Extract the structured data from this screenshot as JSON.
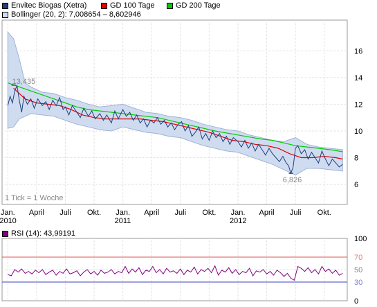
{
  "legend": {
    "price": "Envitec Biogas (Xetra)",
    "gd100": "GD 100 Tage",
    "gd200": "GD 200 Tage",
    "bollinger": "Bollinger (20, 2): 7,008654 – 8,602946",
    "rsi": "RSI (14): 43,99191"
  },
  "colors": {
    "price": "#1f3f7f",
    "gd100": "#e60000",
    "gd200": "#00cc00",
    "bollinger_fill": "#cfdcf0",
    "bollinger_line": "#9fb3d6",
    "rsi_line": "#800080",
    "rsi_upper": "#e05050",
    "rsi_lower": "#4040c0"
  },
  "chart_data": [
    {
      "type": "line",
      "title": "",
      "x_ticks": [
        {
          "month": "Jan.",
          "year": "2010"
        },
        {
          "month": "April",
          "year": ""
        },
        {
          "month": "Juli",
          "year": ""
        },
        {
          "month": "Okt.",
          "year": ""
        },
        {
          "month": "Jan.",
          "year": "2011"
        },
        {
          "month": "April",
          "year": ""
        },
        {
          "month": "Juli",
          "year": ""
        },
        {
          "month": "Okt.",
          "year": ""
        },
        {
          "month": "Jan.",
          "year": "2012"
        },
        {
          "month": "April",
          "year": ""
        },
        {
          "month": "Juli",
          "year": ""
        },
        {
          "month": "Okt.",
          "year": ""
        }
      ],
      "y_ticks": [
        "6",
        "8",
        "10",
        "12",
        "14",
        "16"
      ],
      "ylim": [
        4.5,
        18.3
      ],
      "xlim": [
        2009.95,
        2012.95
      ],
      "grid": true,
      "annotations": [
        {
          "label": "13,435",
          "x": 2010.05,
          "y": 13.43
        },
        {
          "label": "6,826",
          "x": 2012.46,
          "y": 6.83
        }
      ],
      "note": "1 Tick = 1 Woche",
      "series": [
        {
          "name": "Envitec Biogas (Xetra)",
          "x": [
            2010.0,
            2010.02,
            2010.04,
            2010.06,
            2010.08,
            2010.1,
            2010.12,
            2010.14,
            2010.17,
            2010.2,
            2010.23,
            2010.26,
            2010.3,
            2010.33,
            2010.36,
            2010.39,
            2010.42,
            2010.45,
            2010.48,
            2010.5,
            2010.53,
            2010.56,
            2010.6,
            2010.63,
            2010.66,
            2010.7,
            2010.73,
            2010.76,
            2010.8,
            2010.83,
            2010.86,
            2010.9,
            2010.93,
            2010.96,
            2011.0,
            2011.03,
            2011.06,
            2011.09,
            2011.12,
            2011.15,
            2011.18,
            2011.21,
            2011.24,
            2011.27,
            2011.3,
            2011.33,
            2011.36,
            2011.39,
            2011.42,
            2011.45,
            2011.48,
            2011.51,
            2011.54,
            2011.57,
            2011.6,
            2011.63,
            2011.66,
            2011.69,
            2011.72,
            2011.75,
            2011.78,
            2011.81,
            2011.84,
            2011.87,
            2011.9,
            2011.93,
            2011.96,
            2012.0,
            2012.03,
            2012.06,
            2012.09,
            2012.12,
            2012.15,
            2012.18,
            2012.21,
            2012.24,
            2012.27,
            2012.3,
            2012.33,
            2012.36,
            2012.39,
            2012.42,
            2012.44,
            2012.46,
            2012.48,
            2012.5,
            2012.52,
            2012.55,
            2012.58,
            2012.61,
            2012.64,
            2012.67,
            2012.7,
            2012.73,
            2012.76,
            2012.79,
            2012.82,
            2012.85,
            2012.88,
            2012.91
          ],
          "y": [
            11.9,
            12.6,
            12.1,
            13.0,
            13.4,
            12.3,
            11.4,
            12.6,
            12.0,
            12.4,
            11.7,
            12.4,
            11.9,
            12.2,
            11.6,
            12.3,
            11.9,
            12.5,
            11.6,
            11.8,
            11.2,
            11.9,
            11.4,
            11.0,
            11.7,
            11.1,
            11.5,
            10.9,
            11.3,
            10.8,
            11.2,
            10.6,
            11.5,
            10.9,
            11.6,
            11.1,
            11.4,
            10.8,
            11.2,
            10.6,
            10.9,
            10.3,
            10.8,
            10.6,
            11.0,
            10.5,
            10.8,
            10.3,
            10.6,
            10.1,
            10.5,
            10.7,
            10.0,
            10.4,
            9.6,
            9.9,
            10.3,
            9.4,
            9.8,
            9.3,
            10.0,
            9.5,
            9.8,
            9.2,
            9.6,
            9.0,
            9.5,
            9.2,
            8.8,
            9.3,
            8.7,
            9.1,
            8.5,
            9.0,
            8.6,
            8.2,
            8.7,
            8.3,
            8.0,
            7.7,
            8.1,
            7.6,
            7.4,
            6.83,
            7.3,
            8.7,
            8.9,
            8.3,
            8.6,
            7.9,
            8.4,
            8.0,
            7.6,
            8.5,
            7.9,
            7.4,
            7.9,
            7.6,
            7.3,
            7.5
          ]
        },
        {
          "name": "GD 100 Tage",
          "x": [
            2010.05,
            2010.15,
            2010.25,
            2010.35,
            2010.45,
            2010.55,
            2010.65,
            2010.75,
            2010.85,
            2010.95,
            2011.05,
            2011.15,
            2011.25,
            2011.35,
            2011.45,
            2011.55,
            2011.65,
            2011.75,
            2011.85,
            2011.95,
            2012.05,
            2012.15,
            2012.25,
            2012.35,
            2012.45,
            2012.55,
            2012.65,
            2012.75,
            2012.85,
            2012.91
          ],
          "y": [
            13.2,
            12.4,
            12.1,
            12.0,
            11.9,
            11.6,
            11.2,
            11.0,
            10.9,
            10.9,
            10.9,
            10.9,
            10.8,
            10.7,
            10.5,
            10.3,
            10.1,
            9.9,
            9.6,
            9.3,
            9.2,
            9.0,
            8.9,
            8.7,
            8.3,
            8.0,
            8.0,
            8.1,
            8.0,
            7.9
          ]
        },
        {
          "name": "GD 200 Tage",
          "x": [
            2010.0,
            2010.1,
            2010.2,
            2010.3,
            2010.4,
            2010.5,
            2010.6,
            2010.7,
            2010.8,
            2010.9,
            2011.0,
            2011.1,
            2011.2,
            2011.3,
            2011.4,
            2011.5,
            2011.6,
            2011.7,
            2011.8,
            2011.9,
            2012.0,
            2012.1,
            2012.2,
            2012.3,
            2012.4,
            2012.5,
            2012.6,
            2012.7,
            2012.8,
            2012.91
          ],
          "y": [
            13.6,
            13.3,
            13.0,
            12.7,
            12.4,
            12.1,
            11.8,
            11.6,
            11.5,
            11.4,
            11.3,
            11.2,
            11.1,
            11.0,
            10.8,
            10.6,
            10.4,
            10.2,
            10.0,
            9.85,
            9.7,
            9.55,
            9.4,
            9.3,
            9.1,
            8.9,
            8.8,
            8.7,
            8.6,
            8.45
          ]
        },
        {
          "name": "Bollinger (20, 2)",
          "x": [
            2010.0,
            2010.05,
            2010.1,
            2010.15,
            2010.2,
            2010.3,
            2010.4,
            2010.5,
            2010.6,
            2010.7,
            2010.8,
            2010.9,
            2011.0,
            2011.1,
            2011.2,
            2011.3,
            2011.4,
            2011.5,
            2011.6,
            2011.7,
            2011.8,
            2011.9,
            2012.0,
            2012.1,
            2012.2,
            2012.3,
            2012.4,
            2012.5,
            2012.6,
            2012.7,
            2012.8,
            2012.91
          ],
          "upper": [
            17.4,
            16.9,
            15.4,
            13.6,
            13.3,
            12.9,
            12.8,
            12.5,
            12.3,
            12.0,
            11.8,
            11.9,
            12.0,
            11.7,
            11.4,
            11.3,
            11.1,
            11.0,
            10.8,
            10.5,
            10.3,
            10.1,
            10.0,
            9.7,
            9.5,
            9.3,
            9.2,
            9.5,
            9.0,
            8.8,
            8.7,
            8.6
          ],
          "lower": [
            10.2,
            10.3,
            10.9,
            11.1,
            11.3,
            11.2,
            11.1,
            10.8,
            10.5,
            10.3,
            10.1,
            10.0,
            10.3,
            10.1,
            9.9,
            9.8,
            9.6,
            9.5,
            9.2,
            8.9,
            8.7,
            8.5,
            8.4,
            8.1,
            7.8,
            7.5,
            7.1,
            6.7,
            7.2,
            7.2,
            7.1,
            7.0
          ]
        }
      ]
    },
    {
      "type": "line",
      "title": "",
      "y_ticks": [
        "0",
        "30",
        "50",
        "70",
        "100"
      ],
      "ylim": [
        0,
        100
      ],
      "reference_lines": [
        30,
        70
      ],
      "series": [
        {
          "name": "RSI (14)",
          "x": [
            2010.0,
            2010.03,
            2010.06,
            2010.09,
            2010.12,
            2010.15,
            2010.18,
            2010.21,
            2010.24,
            2010.27,
            2010.3,
            2010.33,
            2010.36,
            2010.39,
            2010.42,
            2010.45,
            2010.48,
            2010.51,
            2010.54,
            2010.57,
            2010.6,
            2010.63,
            2010.66,
            2010.69,
            2010.72,
            2010.75,
            2010.78,
            2010.81,
            2010.84,
            2010.87,
            2010.9,
            2010.93,
            2010.96,
            2010.99,
            2011.02,
            2011.05,
            2011.08,
            2011.11,
            2011.14,
            2011.17,
            2011.2,
            2011.23,
            2011.26,
            2011.29,
            2011.32,
            2011.35,
            2011.38,
            2011.41,
            2011.44,
            2011.47,
            2011.5,
            2011.53,
            2011.56,
            2011.59,
            2011.62,
            2011.65,
            2011.68,
            2011.71,
            2011.74,
            2011.77,
            2011.8,
            2011.83,
            2011.86,
            2011.89,
            2011.92,
            2011.95,
            2011.98,
            2012.01,
            2012.04,
            2012.07,
            2012.1,
            2012.13,
            2012.16,
            2012.19,
            2012.22,
            2012.25,
            2012.28,
            2012.31,
            2012.34,
            2012.37,
            2012.4,
            2012.43,
            2012.46,
            2012.49,
            2012.52,
            2012.55,
            2012.58,
            2012.61,
            2012.64,
            2012.67,
            2012.7,
            2012.73,
            2012.76,
            2012.79,
            2012.82,
            2012.85,
            2012.88,
            2012.91
          ],
          "y": [
            42,
            40,
            50,
            46,
            51,
            44,
            47,
            43,
            49,
            45,
            50,
            42,
            46,
            49,
            41,
            47,
            44,
            51,
            43,
            45,
            48,
            40,
            46,
            50,
            43,
            47,
            41,
            49,
            44,
            46,
            50,
            43,
            47,
            45,
            55,
            44,
            51,
            46,
            53,
            42,
            49,
            47,
            55,
            45,
            50,
            43,
            52,
            46,
            48,
            44,
            51,
            42,
            49,
            46,
            54,
            43,
            50,
            47,
            52,
            45,
            56,
            41,
            49,
            46,
            53,
            44,
            50,
            42,
            47,
            45,
            52,
            40,
            48,
            46,
            50,
            43,
            47,
            41,
            49,
            45,
            39,
            44,
            36,
            33,
            55,
            52,
            47,
            53,
            45,
            50,
            43,
            55,
            47,
            51,
            44,
            49,
            41,
            44
          ]
        }
      ]
    }
  ]
}
